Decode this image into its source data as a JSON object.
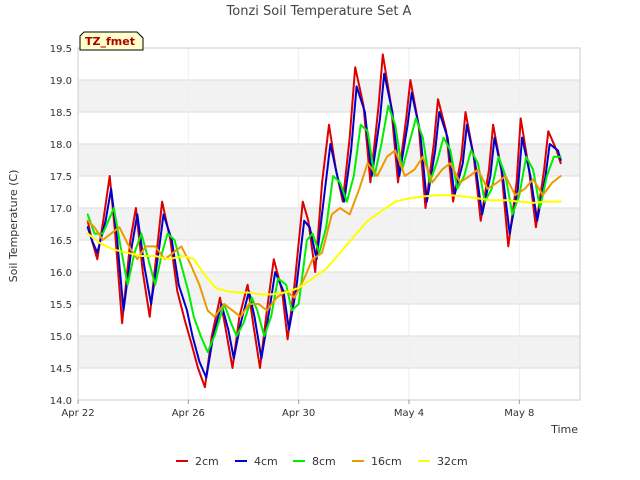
{
  "chart_data": {
    "type": "line",
    "title": "Tonzi Soil Temperature Set A",
    "xlabel": "Time",
    "ylabel": "Soil Temperature (C)",
    "tag": "TZ_fmet",
    "xlim": [
      0,
      18.2
    ],
    "ylim": [
      14.0,
      19.5
    ],
    "x_ticks": [
      {
        "value": 0,
        "label": "Apr 22"
      },
      {
        "value": 4,
        "label": "Apr 26"
      },
      {
        "value": 8,
        "label": "Apr 30"
      },
      {
        "value": 12,
        "label": "May 4"
      },
      {
        "value": 16,
        "label": "May 8"
      }
    ],
    "y_ticks": [
      14.0,
      14.5,
      15.0,
      15.5,
      16.0,
      16.5,
      17.0,
      17.5,
      18.0,
      18.5,
      19.0,
      19.5
    ],
    "legend": [
      "2cm",
      "4cm",
      "8cm",
      "16cm",
      "32cm"
    ],
    "series": [
      {
        "name": "2cm",
        "color": "#dd0000",
        "x": [
          0.35,
          0.5,
          0.7,
          0.95,
          1.15,
          1.35,
          1.6,
          1.9,
          2.1,
          2.35,
          2.6,
          2.9,
          3.05,
          3.35,
          3.6,
          3.9,
          4.1,
          4.35,
          4.6,
          4.85,
          5.15,
          5.4,
          5.6,
          5.85,
          6.15,
          6.35,
          6.6,
          6.85,
          7.1,
          7.4,
          7.6,
          7.85,
          8.15,
          8.35,
          8.6,
          8.85,
          9.1,
          9.35,
          9.6,
          9.85,
          10.05,
          10.35,
          10.6,
          10.9,
          11.05,
          11.35,
          11.6,
          11.9,
          12.05,
          12.35,
          12.6,
          12.9,
          13.05,
          13.35,
          13.6,
          13.9,
          14.05,
          14.35,
          14.6,
          14.9,
          15.05,
          15.35,
          15.6,
          15.9,
          16.05,
          16.35,
          16.6,
          16.9,
          17.05,
          17.35,
          17.5
        ],
        "values": [
          16.8,
          16.5,
          16.2,
          16.9,
          17.5,
          16.6,
          15.2,
          16.5,
          17.0,
          16.0,
          15.3,
          16.5,
          17.1,
          16.5,
          15.7,
          15.2,
          14.9,
          14.5,
          14.2,
          15.0,
          15.6,
          15.0,
          14.5,
          15.3,
          15.8,
          15.2,
          14.5,
          15.4,
          16.2,
          15.7,
          14.95,
          15.8,
          17.1,
          16.8,
          16.0,
          17.4,
          18.3,
          17.6,
          17.1,
          18.1,
          19.2,
          18.6,
          17.4,
          18.6,
          19.4,
          18.6,
          17.4,
          18.4,
          19.0,
          18.3,
          17.0,
          18.0,
          18.7,
          18.2,
          17.1,
          17.8,
          18.5,
          17.8,
          16.8,
          17.6,
          18.3,
          17.6,
          16.4,
          17.4,
          18.4,
          17.6,
          16.7,
          17.6,
          18.2,
          17.9,
          17.7
        ]
      },
      {
        "name": "4cm",
        "color": "#0000cc",
        "x": [
          0.35,
          0.5,
          0.7,
          1.0,
          1.2,
          1.4,
          1.65,
          1.95,
          2.15,
          2.4,
          2.65,
          2.95,
          3.1,
          3.4,
          3.65,
          3.95,
          4.15,
          4.4,
          4.65,
          4.9,
          5.2,
          5.45,
          5.65,
          5.9,
          6.2,
          6.4,
          6.65,
          6.9,
          7.15,
          7.45,
          7.65,
          7.9,
          8.2,
          8.4,
          8.65,
          8.9,
          9.15,
          9.4,
          9.65,
          9.9,
          10.1,
          10.4,
          10.65,
          10.95,
          11.1,
          11.4,
          11.65,
          11.95,
          12.1,
          12.4,
          12.65,
          12.95,
          13.1,
          13.4,
          13.65,
          13.95,
          14.1,
          14.4,
          14.65,
          14.95,
          15.1,
          15.4,
          15.65,
          15.95,
          16.1,
          16.4,
          16.65,
          16.95,
          17.1,
          17.4,
          17.5
        ],
        "values": [
          16.7,
          16.5,
          16.3,
          16.8,
          17.3,
          16.6,
          15.4,
          16.4,
          16.9,
          16.1,
          15.5,
          16.4,
          16.9,
          16.5,
          15.8,
          15.4,
          15.0,
          14.6,
          14.35,
          15.0,
          15.5,
          15.1,
          14.65,
          15.2,
          15.7,
          15.3,
          14.65,
          15.3,
          16.0,
          15.7,
          15.1,
          15.7,
          16.8,
          16.7,
          16.2,
          17.1,
          18.0,
          17.5,
          17.1,
          17.9,
          18.9,
          18.5,
          17.5,
          18.4,
          19.1,
          18.5,
          17.5,
          18.3,
          18.8,
          18.2,
          17.1,
          17.9,
          18.5,
          18.1,
          17.2,
          17.7,
          18.3,
          17.7,
          16.9,
          17.5,
          18.1,
          17.5,
          16.6,
          17.3,
          18.1,
          17.5,
          16.8,
          17.5,
          18.0,
          17.9,
          17.75
        ]
      },
      {
        "name": "8cm",
        "color": "#00ee00",
        "x": [
          0.35,
          0.6,
          0.9,
          1.1,
          1.3,
          1.5,
          1.8,
          2.05,
          2.3,
          2.55,
          2.8,
          3.05,
          3.25,
          3.5,
          3.75,
          4.0,
          4.2,
          4.45,
          4.7,
          4.95,
          5.3,
          5.55,
          5.75,
          6.0,
          6.3,
          6.5,
          6.75,
          7.0,
          7.25,
          7.55,
          7.75,
          8.0,
          8.3,
          8.5,
          8.75,
          9.0,
          9.25,
          9.5,
          9.75,
          10.0,
          10.25,
          10.5,
          10.75,
          11.0,
          11.25,
          11.5,
          11.75,
          12.0,
          12.25,
          12.5,
          12.75,
          13.0,
          13.25,
          13.5,
          13.75,
          14.0,
          14.25,
          14.5,
          14.75,
          15.0,
          15.25,
          15.5,
          15.75,
          16.0,
          16.25,
          16.5,
          16.75,
          17.0,
          17.25,
          17.5
        ],
        "values": [
          16.9,
          16.6,
          16.6,
          16.8,
          17.0,
          16.5,
          15.8,
          16.3,
          16.6,
          16.2,
          15.8,
          16.3,
          16.6,
          16.5,
          16.1,
          15.7,
          15.3,
          15.0,
          14.75,
          15.0,
          15.5,
          15.2,
          15.0,
          15.2,
          15.6,
          15.4,
          15.0,
          15.3,
          15.9,
          15.8,
          15.4,
          15.5,
          16.5,
          16.6,
          16.3,
          16.7,
          17.5,
          17.4,
          17.1,
          17.5,
          18.3,
          18.2,
          17.5,
          18.0,
          18.6,
          18.3,
          17.6,
          18.0,
          18.4,
          18.1,
          17.4,
          17.7,
          18.1,
          17.9,
          17.3,
          17.5,
          17.9,
          17.7,
          17.1,
          17.3,
          17.8,
          17.5,
          16.9,
          17.2,
          17.8,
          17.6,
          17.0,
          17.5,
          17.8,
          17.8
        ]
      },
      {
        "name": "16cm",
        "color": "#ee9900",
        "x": [
          0.35,
          0.6,
          0.9,
          1.2,
          1.5,
          1.85,
          2.15,
          2.45,
          2.8,
          3.15,
          3.45,
          3.75,
          4.1,
          4.4,
          4.7,
          4.95,
          5.3,
          5.6,
          5.9,
          6.2,
          6.55,
          6.85,
          7.2,
          7.55,
          7.85,
          8.2,
          8.5,
          8.85,
          9.2,
          9.5,
          9.85,
          10.2,
          10.5,
          10.85,
          11.2,
          11.5,
          11.85,
          12.2,
          12.5,
          12.85,
          13.2,
          13.5,
          13.85,
          14.2,
          14.5,
          14.85,
          15.2,
          15.5,
          15.85,
          16.2,
          16.5,
          16.85,
          17.2,
          17.5
        ],
        "values": [
          16.8,
          16.7,
          16.5,
          16.6,
          16.7,
          16.4,
          16.2,
          16.4,
          16.4,
          16.2,
          16.3,
          16.4,
          16.1,
          15.8,
          15.4,
          15.3,
          15.5,
          15.4,
          15.3,
          15.5,
          15.5,
          15.4,
          15.6,
          15.7,
          15.6,
          15.9,
          16.2,
          16.3,
          16.9,
          17.0,
          16.9,
          17.3,
          17.7,
          17.5,
          17.8,
          17.9,
          17.5,
          17.6,
          17.8,
          17.4,
          17.6,
          17.7,
          17.4,
          17.5,
          17.6,
          17.3,
          17.4,
          17.5,
          17.2,
          17.3,
          17.45,
          17.2,
          17.4,
          17.5
        ]
      },
      {
        "name": "32cm",
        "color": "#ffff00",
        "x": [
          0.35,
          0.8,
          1.3,
          1.8,
          2.3,
          2.8,
          3.3,
          3.8,
          4.2,
          4.6,
          5.0,
          5.4,
          5.8,
          6.2,
          6.6,
          7.0,
          7.5,
          8.0,
          8.5,
          9.0,
          9.5,
          10.0,
          10.5,
          11.0,
          11.5,
          12.0,
          12.5,
          13.0,
          13.5,
          14.0,
          14.5,
          15.0,
          15.5,
          16.0,
          16.5,
          17.0,
          17.5
        ],
        "values": [
          16.6,
          16.45,
          16.35,
          16.3,
          16.25,
          16.25,
          16.2,
          16.25,
          16.2,
          15.95,
          15.75,
          15.7,
          15.68,
          15.68,
          15.65,
          15.65,
          15.68,
          15.75,
          15.9,
          16.05,
          16.3,
          16.55,
          16.8,
          16.95,
          17.1,
          17.15,
          17.18,
          17.2,
          17.2,
          17.18,
          17.15,
          17.12,
          17.12,
          17.1,
          17.08,
          17.1,
          17.1
        ]
      }
    ]
  }
}
